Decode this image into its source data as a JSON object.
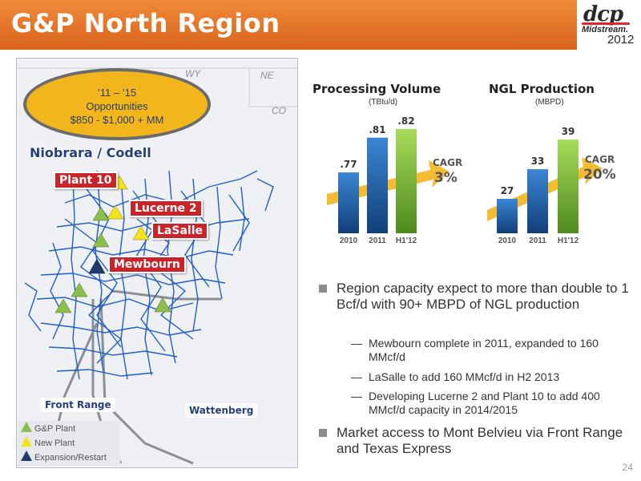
{
  "header": {
    "title": "G&P North Region"
  },
  "logo": {
    "mark": "dcp",
    "sub": "Midstream.",
    "year": "2012"
  },
  "map": {
    "states": [
      "WY",
      "NE",
      "CO"
    ],
    "opportunity": {
      "line1": "’11 – ’15",
      "line2": "Opportunities",
      "line3": "$850  - $1,000 + MM"
    },
    "labels": {
      "niobrara": "Niobrara / Codell",
      "plant10": "Plant 10",
      "lucerne2": "Lucerne 2",
      "lasalle": "LaSalle",
      "mewbourn": "Mewbourn",
      "front_range": "Front Range",
      "wattenberg": "Wattenberg"
    },
    "legend": [
      {
        "label": "G&P Plant",
        "color": "#8bbf4a"
      },
      {
        "label": "New Plant",
        "color": "#f4e21c"
      },
      {
        "label": "Expansion/Restart",
        "color": "#1f3a6b"
      }
    ]
  },
  "chart_data": [
    {
      "type": "bar",
      "title": "Processing Volume",
      "unit": "(TBtu/d)",
      "categories": [
        "2010",
        "2011",
        "H1'12"
      ],
      "values": [
        0.77,
        0.81,
        0.82
      ],
      "value_labels": [
        ".77",
        ".81",
        ".82"
      ],
      "cagr_label": "CAGR",
      "cagr_value": "3%"
    },
    {
      "type": "bar",
      "title": "NGL Production",
      "unit": "(MBPD)",
      "categories": [
        "2010",
        "2011",
        "H1'12"
      ],
      "values": [
        27,
        33,
        39
      ],
      "value_labels": [
        "27",
        "33",
        "39"
      ],
      "cagr_label": "CAGR",
      "cagr_value": "20%"
    }
  ],
  "bullets": {
    "b1": "Region capacity expect to more than double to 1 Bcf/d with 90+ MBPD of NGL production",
    "sub1": "Mewbourn complete in 2011, expanded to 160 MMcf/d",
    "sub2": "LaSalle to add 160 MMcf/d in H2 2013",
    "sub3": "Developing Lucerne 2 and Plant 10 to add 400 MMcf/d capacity in 2014/2015",
    "b2": "Market access to Mont Belvieu via Front Range and Texas Express",
    "dash": "—"
  },
  "page_number": "24",
  "colors": {
    "header": "#e57a2c",
    "pipeline": "#1f5fc4",
    "bar_blue": "#1f5fa8",
    "bar_green": "#8cc63f",
    "arrow": "#f2b51c"
  }
}
